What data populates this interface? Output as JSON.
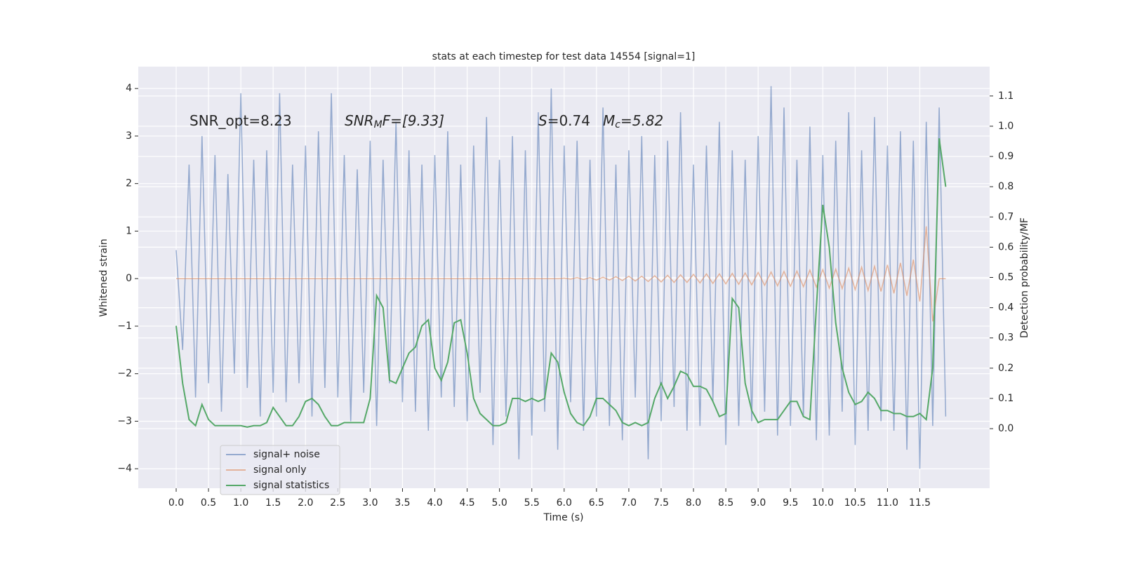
{
  "chart_data": {
    "type": "line",
    "title": "stats at each timestep for test data 14554 [signal=1]",
    "xlabel": "Time (s)",
    "ylabel": "Whitened strain",
    "y2label": "Detection probability/MF",
    "annotations": [
      {
        "rest": "SNR_opt=8.23"
      },
      {
        "italic": "SNR",
        "sub": "M",
        "rest": "F=[9.33]"
      },
      {
        "italic": "S",
        "rest": "=0.74"
      },
      {
        "italic": "M",
        "sub": "c",
        "rest": "=5.82"
      }
    ],
    "grid": true,
    "legend": "lower left",
    "xlim": [
      -0.586,
      12.58
    ],
    "ylim": [
      -4.41,
      4.46
    ],
    "y2lim": [
      -0.197,
      1.197
    ],
    "xticks": [
      {
        "value": 0,
        "label": "0.0"
      },
      {
        "value": 0.5,
        "label": "0.5"
      },
      {
        "value": 1,
        "label": "1.0"
      },
      {
        "value": 1.5,
        "label": "1.5"
      },
      {
        "value": 2,
        "label": "2.0"
      },
      {
        "value": 2.5,
        "label": "2.5"
      },
      {
        "value": 3,
        "label": "3.0"
      },
      {
        "value": 3.5,
        "label": "3.5"
      },
      {
        "value": 4,
        "label": "4.0"
      },
      {
        "value": 4.5,
        "label": "4.5"
      },
      {
        "value": 5,
        "label": "5.0"
      },
      {
        "value": 5.5,
        "label": "5.5"
      },
      {
        "value": 6,
        "label": "6.0"
      },
      {
        "value": 6.5,
        "label": "6.5"
      },
      {
        "value": 7,
        "label": "7.0"
      },
      {
        "value": 7.5,
        "label": "7.5"
      },
      {
        "value": 8,
        "label": "8.0"
      },
      {
        "value": 8.5,
        "label": "8.5"
      },
      {
        "value": 9,
        "label": "9.0"
      },
      {
        "value": 9.5,
        "label": "9.5"
      },
      {
        "value": 10,
        "label": "10.0"
      },
      {
        "value": 10.5,
        "label": "10.5"
      },
      {
        "value": 11,
        "label": "11.0"
      },
      {
        "value": 11.5,
        "label": "11.5"
      }
    ],
    "yticks": [
      {
        "value": -4,
        "label": "−4"
      },
      {
        "value": -3,
        "label": "−3"
      },
      {
        "value": -2,
        "label": "−2"
      },
      {
        "value": -1,
        "label": "−1"
      },
      0,
      1,
      2,
      3,
      4
    ],
    "y2ticks": [
      {
        "value": 0,
        "label": "0.0"
      },
      {
        "value": 0.1,
        "label": "0.1"
      },
      {
        "value": 0.2,
        "label": "0.2"
      },
      {
        "value": 0.3,
        "label": "0.3"
      },
      {
        "value": 0.4,
        "label": "0.4"
      },
      {
        "value": 0.5,
        "label": "0.5"
      },
      {
        "value": 0.6,
        "label": "0.6"
      },
      {
        "value": 0.7,
        "label": "0.7"
      },
      {
        "value": 0.8,
        "label": "0.8"
      },
      {
        "value": 0.9,
        "label": "0.9"
      },
      {
        "value": 1,
        "label": "1.0"
      },
      {
        "value": 1.1,
        "label": "1.1"
      }
    ],
    "x": [
      0,
      0.1,
      0.2,
      0.3,
      0.4,
      0.5,
      0.6,
      0.7,
      0.8,
      0.9,
      1,
      1.1,
      1.2,
      1.3,
      1.4,
      1.5,
      1.6,
      1.7,
      1.8,
      1.9,
      2,
      2.1,
      2.2,
      2.3,
      2.4,
      2.5,
      2.6,
      2.7,
      2.8,
      2.9,
      3,
      3.1,
      3.2,
      3.3,
      3.4,
      3.5,
      3.6,
      3.7,
      3.8,
      3.9,
      4,
      4.1,
      4.2,
      4.3,
      4.4,
      4.5,
      4.6,
      4.7,
      4.8,
      4.9,
      5,
      5.1,
      5.2,
      5.3,
      5.4,
      5.5,
      5.6,
      5.7,
      5.8,
      5.9,
      6,
      6.1,
      6.2,
      6.3,
      6.4,
      6.5,
      6.6,
      6.7,
      6.8,
      6.9,
      7,
      7.1,
      7.2,
      7.3,
      7.4,
      7.5,
      7.6,
      7.7,
      7.8,
      7.9,
      8,
      8.1,
      8.2,
      8.3,
      8.4,
      8.5,
      8.6,
      8.7,
      8.8,
      8.9,
      9,
      9.1,
      9.2,
      9.3,
      9.4,
      9.5,
      9.6,
      9.7,
      9.8,
      9.9,
      10,
      10.1,
      10.2,
      10.3,
      10.4,
      10.5,
      10.6,
      10.7,
      10.8,
      10.9,
      11,
      11.1,
      11.2,
      11.3,
      11.4,
      11.5,
      11.6,
      11.7,
      11.8,
      11.9
    ],
    "series": [
      {
        "name": "signal+ noise",
        "color": "#4c72b0",
        "values": [
          0.6,
          -1.5,
          2.4,
          -2.5,
          3.0,
          -2.2,
          2.6,
          -2.8,
          2.2,
          -2.0,
          3.9,
          -2.3,
          2.5,
          -2.9,
          2.7,
          -2.4,
          3.9,
          -2.6,
          2.4,
          -2.2,
          2.8,
          -2.9,
          3.1,
          -2.3,
          3.9,
          -2.5,
          2.6,
          -3.0,
          2.3,
          -2.4,
          2.9,
          -3.1,
          2.5,
          -2.2,
          3.3,
          -2.6,
          2.7,
          -2.8,
          2.4,
          -3.2,
          2.6,
          -2.5,
          3.1,
          -2.7,
          2.4,
          -3.0,
          2.8,
          -2.4,
          3.4,
          -3.5,
          2.5,
          -2.9,
          3.0,
          -3.8,
          2.7,
          -3.3,
          3.5,
          -2.8,
          4.0,
          -3.6,
          2.8,
          -2.6,
          2.9,
          -3.2,
          2.5,
          -2.9,
          3.6,
          -3.1,
          2.4,
          -3.4,
          2.7,
          -2.5,
          3.0,
          -3.8,
          2.6,
          -3.0,
          2.9,
          -2.7,
          3.5,
          -3.2,
          2.4,
          -3.1,
          2.8,
          -2.6,
          3.3,
          -3.5,
          2.7,
          -3.1,
          2.5,
          -3.0,
          3.0,
          -2.8,
          4.05,
          -3.3,
          3.6,
          -3.1,
          2.5,
          -2.9,
          3.2,
          -3.4,
          2.6,
          -3.3,
          2.9,
          -2.8,
          3.5,
          -3.5,
          2.7,
          -3.2,
          3.4,
          -3.0,
          2.8,
          -3.2,
          3.1,
          -3.6,
          2.9,
          -4.0,
          3.3,
          -3.1,
          3.6,
          -2.9
        ]
      },
      {
        "name": "signal only",
        "color": "#dd8452",
        "values": [
          0,
          0,
          0,
          0,
          0,
          0,
          0,
          0,
          0,
          0,
          0,
          0,
          0,
          0,
          0,
          0,
          0,
          0,
          0,
          0,
          0,
          0,
          0,
          0,
          0,
          0,
          0,
          0,
          0,
          0,
          0,
          0,
          0,
          0,
          0,
          0,
          0,
          0,
          0,
          0,
          0,
          0,
          0,
          0,
          0,
          0,
          0,
          0,
          0,
          0,
          0,
          0,
          0,
          0,
          0,
          0,
          0,
          0,
          0,
          0,
          0.01,
          -0.01,
          0.02,
          -0.02,
          0.02,
          -0.03,
          0.03,
          -0.03,
          0.04,
          -0.04,
          0.05,
          -0.05,
          0.05,
          -0.06,
          0.06,
          -0.07,
          0.07,
          -0.08,
          0.08,
          -0.08,
          0.09,
          -0.09,
          0.1,
          -0.1,
          0.1,
          -0.11,
          0.11,
          -0.12,
          0.12,
          -0.13,
          0.13,
          -0.14,
          0.14,
          -0.15,
          0.15,
          -0.16,
          0.16,
          -0.17,
          0.18,
          -0.18,
          0.19,
          -0.2,
          0.2,
          -0.21,
          0.22,
          -0.23,
          0.24,
          -0.25,
          0.26,
          -0.27,
          0.29,
          -0.31,
          0.33,
          -0.36,
          0.4,
          -0.48,
          1.1,
          -0.9,
          0,
          0
        ]
      },
      {
        "name": "signal statistics",
        "color": "#55a868",
        "axis": "y2",
        "values": [
          0.34,
          0.15,
          0.03,
          0.01,
          0.08,
          0.03,
          0.01,
          0.01,
          0.01,
          0.01,
          0.01,
          0.005,
          0.01,
          0.01,
          0.02,
          0.07,
          0.04,
          0.01,
          0.01,
          0.04,
          0.09,
          0.1,
          0.08,
          0.04,
          0.01,
          0.01,
          0.02,
          0.02,
          0.02,
          0.02,
          0.1,
          0.44,
          0.4,
          0.16,
          0.15,
          0.2,
          0.25,
          0.27,
          0.34,
          0.36,
          0.2,
          0.16,
          0.22,
          0.35,
          0.36,
          0.25,
          0.1,
          0.05,
          0.03,
          0.01,
          0.01,
          0.02,
          0.1,
          0.1,
          0.09,
          0.1,
          0.09,
          0.1,
          0.25,
          0.22,
          0.12,
          0.05,
          0.02,
          0.01,
          0.04,
          0.1,
          0.1,
          0.08,
          0.06,
          0.02,
          0.01,
          0.02,
          0.01,
          0.02,
          0.1,
          0.15,
          0.1,
          0.14,
          0.19,
          0.18,
          0.14,
          0.14,
          0.13,
          0.09,
          0.04,
          0.05,
          0.43,
          0.4,
          0.15,
          0.06,
          0.02,
          0.03,
          0.03,
          0.03,
          0.06,
          0.09,
          0.09,
          0.04,
          0.03,
          0.4,
          0.74,
          0.6,
          0.35,
          0.2,
          0.12,
          0.08,
          0.09,
          0.12,
          0.1,
          0.06,
          0.06,
          0.05,
          0.05,
          0.04,
          0.04,
          0.05,
          0.03,
          0.2,
          0.96,
          0.8
        ]
      }
    ]
  }
}
